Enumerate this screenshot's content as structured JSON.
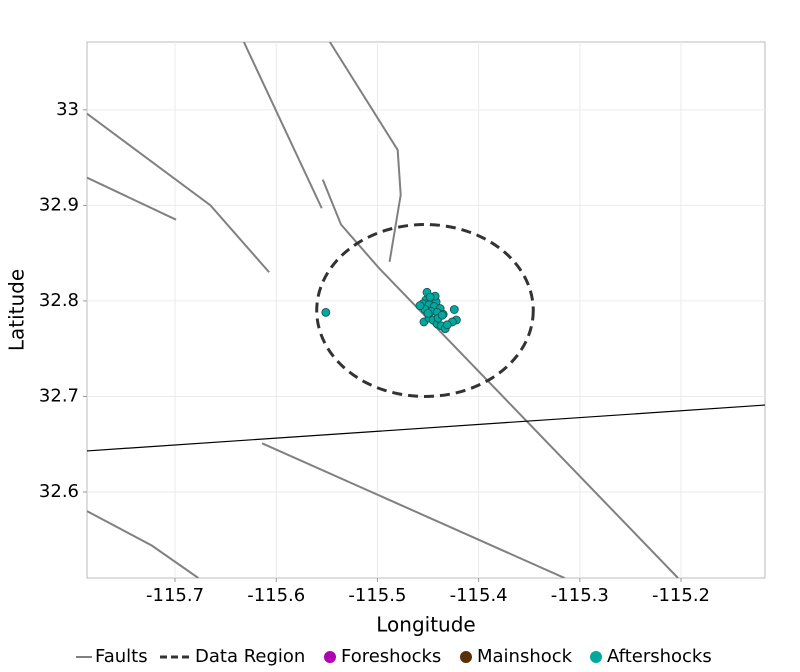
{
  "chart_data": {
    "type": "scatter",
    "x_label": "Longitude",
    "y_label": "Latitude",
    "xlim": [
      -115.787,
      -115.117
    ],
    "ylim": [
      32.51,
      33.071
    ],
    "xticks": [
      -115.7,
      -115.6,
      -115.5,
      -115.4,
      -115.3,
      -115.2
    ],
    "yticks": [
      32.6,
      32.7,
      32.8,
      32.9,
      33
    ],
    "grid": true,
    "faults": {
      "name": "Faults",
      "color": "#808080",
      "lines": [
        {
          "x": [
            -115.787,
            -115.665,
            -115.607
          ],
          "y": [
            32.996,
            32.9,
            32.83
          ]
        },
        {
          "x": [
            -115.787,
            -115.699
          ],
          "y": [
            32.929,
            32.885
          ]
        },
        {
          "x": [
            -115.632,
            -115.555
          ],
          "y": [
            33.071,
            32.897
          ]
        },
        {
          "x": [
            -115.547,
            -115.48,
            -115.477,
            -115.488
          ],
          "y": [
            33.071,
            32.958,
            32.911,
            32.841
          ]
        },
        {
          "x": [
            -115.554,
            -115.536,
            -115.499,
            -115.203
          ],
          "y": [
            32.927,
            32.88,
            32.835,
            32.51
          ]
        },
        {
          "x": [
            -115.614,
            -115.315
          ],
          "y": [
            32.651,
            32.51
          ]
        },
        {
          "x": [
            -115.787,
            -115.723,
            -115.677
          ],
          "y": [
            32.58,
            32.544,
            32.51
          ]
        },
        {
          "x": [
            -115.787,
            -115.117
          ],
          "y": [
            32.643,
            32.691
          ],
          "color": "#000000"
        }
      ]
    },
    "data_region": {
      "name": "Data Region",
      "color": "#333333",
      "center": [
        -115.453,
        32.79
      ],
      "radius_x": 0.107,
      "radius_y": 0.09
    },
    "series": [
      {
        "name": "Foreshocks",
        "color": "#b000b0",
        "x": [],
        "values": []
      },
      {
        "name": "Mainshock",
        "color": "#5a3008",
        "x": [
          -115.457
        ],
        "values": [
          32.795
        ]
      },
      {
        "name": "Aftershocks",
        "color": "#00a8a0",
        "x": [
          -115.451,
          -115.452,
          -115.446,
          -115.442,
          -115.455,
          -115.449,
          -115.444,
          -115.438,
          -115.453,
          -115.447,
          -115.441,
          -115.435,
          -115.454,
          -115.449,
          -115.445,
          -115.441,
          -115.437,
          -115.433,
          -115.424,
          -115.422,
          -115.426,
          -115.44,
          -115.436,
          -115.45,
          -115.458,
          -115.443,
          -115.448,
          -115.431,
          -115.551
        ],
        "values": [
          32.809,
          32.801,
          32.8,
          32.799,
          32.797,
          32.796,
          32.794,
          32.792,
          32.791,
          32.789,
          32.788,
          32.786,
          32.778,
          32.782,
          32.78,
          32.776,
          32.774,
          32.771,
          32.791,
          32.78,
          32.778,
          32.782,
          32.785,
          32.787,
          32.795,
          32.805,
          32.804,
          32.775,
          32.788
        ]
      }
    ]
  }
}
